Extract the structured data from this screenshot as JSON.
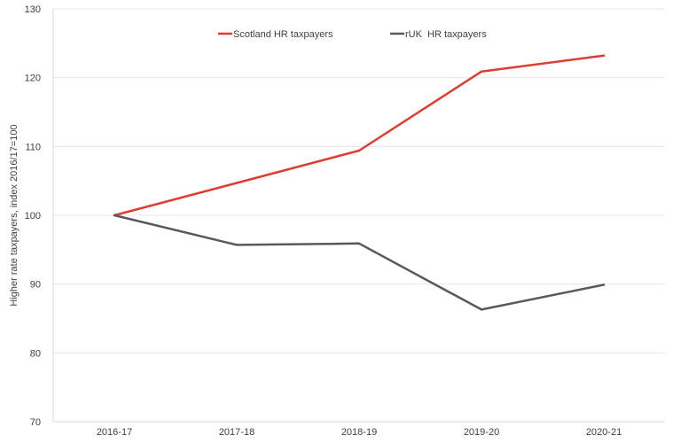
{
  "chart_data": {
    "type": "line",
    "title": "",
    "xlabel": "",
    "ylabel": "Higher rate taxpayers, index 2016/17=100",
    "categories": [
      "2016-17",
      "2017-18",
      "2018-19",
      "2019-20",
      "2020-21"
    ],
    "ylim": [
      70,
      130
    ],
    "yticks": [
      70,
      80,
      90,
      100,
      110,
      120,
      130
    ],
    "grid": true,
    "legend_position": "top-center",
    "series": [
      {
        "name": "Scotland HR taxpayers",
        "color": "#e03c31",
        "values": [
          100,
          104.7,
          109.4,
          120.9,
          123.2
        ]
      },
      {
        "name": "rUK  HR taxpayers",
        "color": "#595959",
        "values": [
          100,
          95.7,
          95.9,
          86.3,
          89.9
        ]
      }
    ]
  }
}
